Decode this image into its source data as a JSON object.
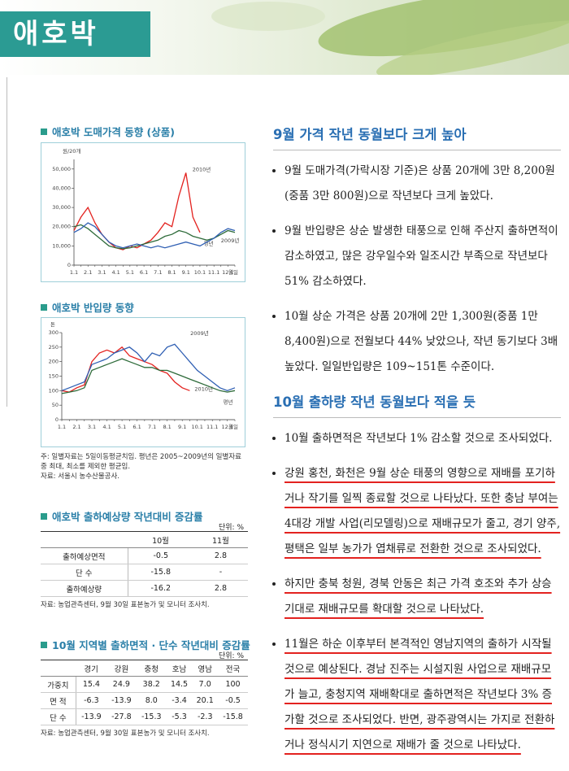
{
  "header": {
    "title": "애호박"
  },
  "chart_data": [
    {
      "type": "line",
      "title": "애호박 도매가격 동향 (상품)",
      "y_label": "원/20개",
      "x_label": "월일",
      "categories": [
        "1.1",
        null,
        "2.1",
        null,
        "3.1",
        null,
        "4.1",
        null,
        "5.1",
        null,
        "6.1",
        null,
        "7.1",
        null,
        "8.1",
        null,
        "9.1",
        null,
        "10.1",
        null,
        "11.1",
        null,
        "12.1",
        null
      ],
      "series": [
        {
          "name": "2010년",
          "color": "#e3221f",
          "values": [
            18000,
            25000,
            30000,
            22000,
            16000,
            12000,
            9000,
            8000,
            10000,
            9000,
            11000,
            13000,
            17000,
            22000,
            20000,
            36000,
            48000,
            25000,
            17000,
            null,
            null,
            null,
            null,
            null
          ]
        },
        {
          "name": "평년",
          "color": "#2e6b3a",
          "values": [
            20000,
            21000,
            19000,
            16000,
            13000,
            10000,
            9000,
            8500,
            9000,
            10000,
            11000,
            12000,
            13000,
            15000,
            16000,
            18000,
            17000,
            15000,
            14000,
            13000,
            14000,
            16000,
            18000,
            17000
          ]
        },
        {
          "name": "2009년",
          "color": "#2f5fb3",
          "values": [
            17000,
            19000,
            22000,
            20000,
            16000,
            12000,
            10000,
            9000,
            10000,
            11000,
            10000,
            9000,
            10000,
            9000,
            10000,
            11000,
            12000,
            11000,
            10000,
            12000,
            14000,
            17000,
            19000,
            18000
          ]
        }
      ],
      "ylim": [
        0,
        55000
      ],
      "yticks": [
        0,
        {
          "value": 10000,
          "label": "10,000"
        },
        {
          "value": 20000,
          "label": "20,000"
        },
        {
          "value": 30000,
          "label": "30,000"
        },
        {
          "value": 40000,
          "label": "40,000"
        },
        {
          "value": 50000,
          "label": "50,000"
        }
      ],
      "grid": false
    },
    {
      "type": "line",
      "title": "애호박 반입량 동향",
      "y_label": "톤",
      "x_label": "월일",
      "categories": [
        "1.1",
        null,
        "2.1",
        null,
        "3.1",
        null,
        "4.1",
        null,
        "5.1",
        null,
        "6.1",
        null,
        "7.1",
        null,
        "8.1",
        null,
        "9.1",
        null,
        "10.1",
        null,
        "11.1",
        null,
        "12.1",
        null
      ],
      "series": [
        {
          "name": "2010년",
          "color": "#e3221f",
          "values": [
            100,
            95,
            110,
            120,
            200,
            230,
            240,
            230,
            250,
            220,
            210,
            200,
            190,
            170,
            160,
            130,
            110,
            100,
            null,
            null,
            null,
            null,
            null,
            null
          ]
        },
        {
          "name": "2009년",
          "color": "#2f5fb3",
          "values": [
            100,
            110,
            120,
            130,
            190,
            200,
            210,
            230,
            240,
            250,
            230,
            200,
            230,
            220,
            250,
            260,
            230,
            200,
            170,
            150,
            130,
            110,
            100,
            110
          ]
        },
        {
          "name": "평년",
          "color": "#2e6b3a",
          "values": [
            90,
            95,
            100,
            110,
            170,
            180,
            190,
            200,
            210,
            200,
            190,
            180,
            180,
            170,
            170,
            160,
            150,
            140,
            130,
            120,
            110,
            100,
            95,
            100
          ]
        }
      ],
      "ylim": [
        0,
        300
      ],
      "yticks": [
        0,
        50,
        100,
        150,
        200,
        250,
        300
      ],
      "grid": false
    }
  ],
  "chart_note": {
    "note": "주: 일별자료는 5일이동평균치임. 평년은 2005~2009년의 일별자료 중 최대, 최소를 제외한 평균임.",
    "source": "자료: 서울시 농수산물공사."
  },
  "tables": [
    {
      "title": "애호박 출하예상량 작년대비 증감률",
      "unit": "단위: %",
      "columns": [
        "10월",
        "11월"
      ],
      "rows": [
        {
          "label": "출하예상면적",
          "values": [
            "-0.5",
            "2.8"
          ]
        },
        {
          "label": "단 수",
          "values": [
            "-15.8",
            "-"
          ]
        },
        {
          "label": "출하예상량",
          "values": [
            "-16.2",
            "2.8"
          ]
        }
      ],
      "source": "자료: 농업관측센터, 9월 30일 표본농가 및 모니터 조사치."
    },
    {
      "title": "10월 지역별 출하면적 · 단수 작년대비 증감률",
      "unit": "단위: %",
      "columns": [
        "경기",
        "강원",
        "충청",
        "호남",
        "영남",
        "전국"
      ],
      "rows": [
        {
          "label": "가중치",
          "values": [
            "15.4",
            "24.9",
            "38.2",
            "14.5",
            "7.0",
            "100"
          ]
        },
        {
          "label": "면 적",
          "values": [
            "-6.3",
            "-13.9",
            "8.0",
            "-3.4",
            "20.1",
            "-0.5"
          ]
        },
        {
          "label": "단 수",
          "values": [
            "-13.9",
            "-27.8",
            "-15.3",
            "-5.3",
            "-2.3",
            "-15.8"
          ]
        }
      ],
      "source": "자료: 농업관측센터, 9월 30일 표본농가 및 모니터 조사치."
    }
  ],
  "sections": [
    {
      "heading": "9월 가격 작년 동월보다 크게 높아",
      "bullets": [
        "9월 도매가격(가락시장 기준)은 상품 20개에 3만 8,200원(중품 3만 800원)으로 작년보다 크게 높았다.",
        "9월 반입량은 상순 발생한 태풍으로 인해 주산지 출하면적이 감소하였고, 많은 강우일수와 일조시간 부족으로 작년보다 51% 감소하였다.",
        "10월 상순 가격은 상품 20개에 2만 1,300원(중품 1만 8,400원)으로 전월보다 44% 낮았으나, 작년 동기보다 3배 높았다. 일일반입량은 109~151톤 수준이다."
      ]
    },
    {
      "heading": "10월 출하량 작년 동월보다 적을 듯",
      "bullets": [
        "10월 출하면적은 작년보다 1% 감소할 것으로 조사되었다.",
        "강원 홍천, 화천은 9월 상순 태풍의 영향으로 재배를 포기하거나 작기를 일찍 종료할 것으로 나타났다. 또한 충남 부여는 4대강 개발 사업(리모델링)으로 재배규모가 줄고, 경기 양주, 평택은 일부 농가가 엽채류로 전환한 것으로 조사되었다.",
        "하지만 충북 청원, 경북 안동은 최근 가격 호조와 추가 상승 기대로 재배규모를 확대할 것으로 나타났다.",
        "11월은 하순 이후부터 본격적인 영남지역의 출하가 시작될 것으로 예상된다. 경남 진주는 시설지원 사업으로 재배규모가 늘고, 충청지역 재배확대로 출하면적은 작년보다 3% 증가할 것으로 조사되었다. 반면, 광주광역시는 가지로 전환하거나 정식시기 지연으로 재배가 줄 것으로 나타났다."
      ]
    }
  ]
}
